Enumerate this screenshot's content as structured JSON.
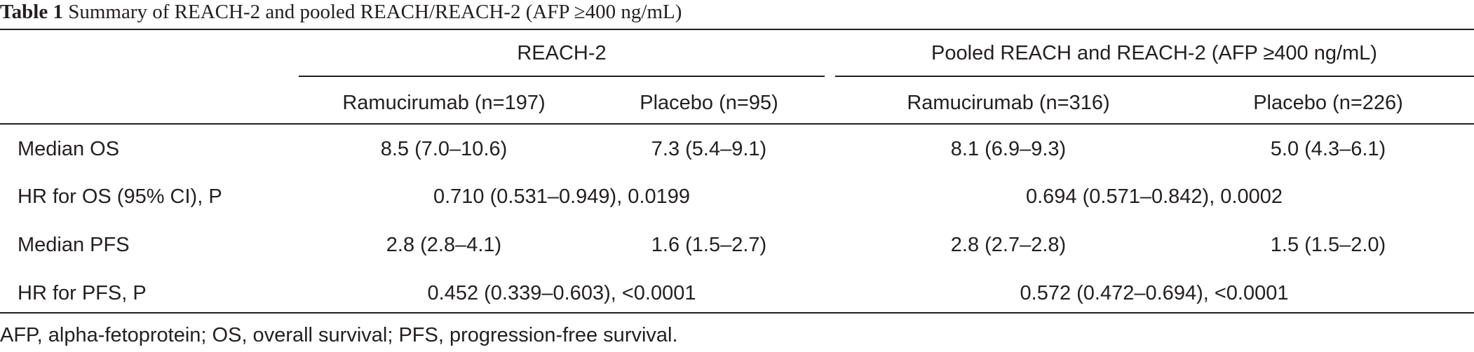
{
  "caption": {
    "label": "Table 1",
    "text": "Summary of REACH-2 and pooled REACH/REACH-2 (AFP ≥400 ng/mL)"
  },
  "table": {
    "group_headers": [
      "REACH-2",
      "Pooled REACH and REACH-2 (AFP ≥400 ng/mL)"
    ],
    "column_headers": [
      "Ramucirumab (n=197)",
      "Placebo (n=95)",
      "Ramucirumab (n=316)",
      "Placebo (n=226)"
    ],
    "rows": [
      {
        "label": "Median OS",
        "cells": [
          "8.5 (7.0–10.6)",
          "7.3 (5.4–9.1)",
          "8.1 (6.9–9.3)",
          "5.0 (4.3–6.1)"
        ]
      },
      {
        "label": "HR for OS (95% CI), P",
        "merged": [
          "0.710 (0.531–0.949), 0.0199",
          "0.694 (0.571–0.842), 0.0002"
        ]
      },
      {
        "label": "Median PFS",
        "cells": [
          "2.8 (2.8–4.1)",
          "1.6 (1.5–2.7)",
          "2.8 (2.7–2.8)",
          "1.5 (1.5–2.0)"
        ]
      },
      {
        "label": "HR for PFS, P",
        "merged": [
          "0.452 (0.339–0.603), <0.0001",
          "0.572 (0.472–0.694), <0.0001"
        ]
      }
    ]
  },
  "footnote": "AFP, alpha-fetoprotein; OS, overall survival; PFS, progression-free survival."
}
